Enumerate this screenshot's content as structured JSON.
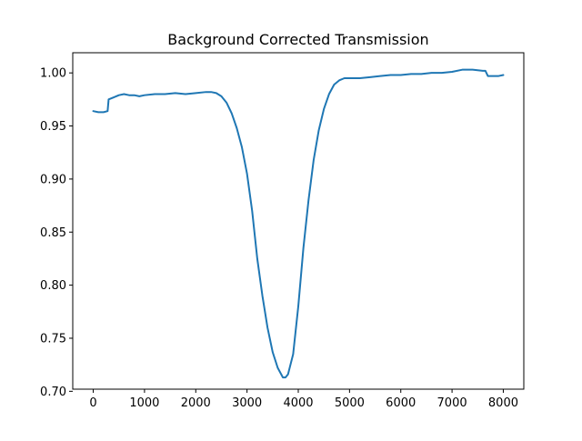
{
  "chart_data": {
    "type": "line",
    "title": "Background Corrected Transmission",
    "xlabel": "",
    "ylabel": "",
    "xlim": [
      -400,
      8400
    ],
    "ylim": [
      0.702,
      1.019
    ],
    "xticks": [
      0,
      1000,
      2000,
      3000,
      4000,
      5000,
      6000,
      7000,
      8000
    ],
    "xtick_labels": [
      "0",
      "1000",
      "2000",
      "3000",
      "4000",
      "5000",
      "6000",
      "7000",
      "8000"
    ],
    "yticks": [
      0.7,
      0.75,
      0.8,
      0.85,
      0.9,
      0.95,
      1.0
    ],
    "ytick_labels": [
      "0.70",
      "0.75",
      "0.80",
      "0.85",
      "0.90",
      "0.95",
      "1.00"
    ],
    "grid": false,
    "legend": "none",
    "series": [
      {
        "color": "#1f77b4",
        "x": [
          0,
          100,
          200,
          280,
          300,
          400,
          500,
          600,
          700,
          800,
          900,
          1000,
          1200,
          1400,
          1600,
          1800,
          2000,
          2200,
          2300,
          2400,
          2500,
          2600,
          2700,
          2800,
          2900,
          3000,
          3100,
          3200,
          3300,
          3400,
          3500,
          3600,
          3700,
          3750,
          3800,
          3900,
          4000,
          4100,
          4200,
          4300,
          4400,
          4500,
          4600,
          4700,
          4800,
          4900,
          5000,
          5200,
          5400,
          5600,
          5800,
          6000,
          6200,
          6400,
          6600,
          6800,
          7000,
          7200,
          7400,
          7600,
          7650,
          7700,
          7800,
          7900,
          8000
        ],
        "y": [
          0.964,
          0.963,
          0.963,
          0.964,
          0.975,
          0.977,
          0.979,
          0.98,
          0.979,
          0.979,
          0.978,
          0.979,
          0.98,
          0.98,
          0.981,
          0.98,
          0.981,
          0.982,
          0.982,
          0.981,
          0.978,
          0.972,
          0.962,
          0.948,
          0.93,
          0.905,
          0.87,
          0.825,
          0.79,
          0.76,
          0.737,
          0.722,
          0.713,
          0.713,
          0.716,
          0.735,
          0.78,
          0.835,
          0.88,
          0.918,
          0.946,
          0.966,
          0.98,
          0.989,
          0.993,
          0.995,
          0.995,
          0.995,
          0.996,
          0.997,
          0.998,
          0.998,
          0.999,
          0.999,
          1.0,
          1.0,
          1.001,
          1.003,
          1.003,
          1.002,
          1.002,
          0.997,
          0.997,
          0.997,
          0.998
        ]
      }
    ]
  }
}
